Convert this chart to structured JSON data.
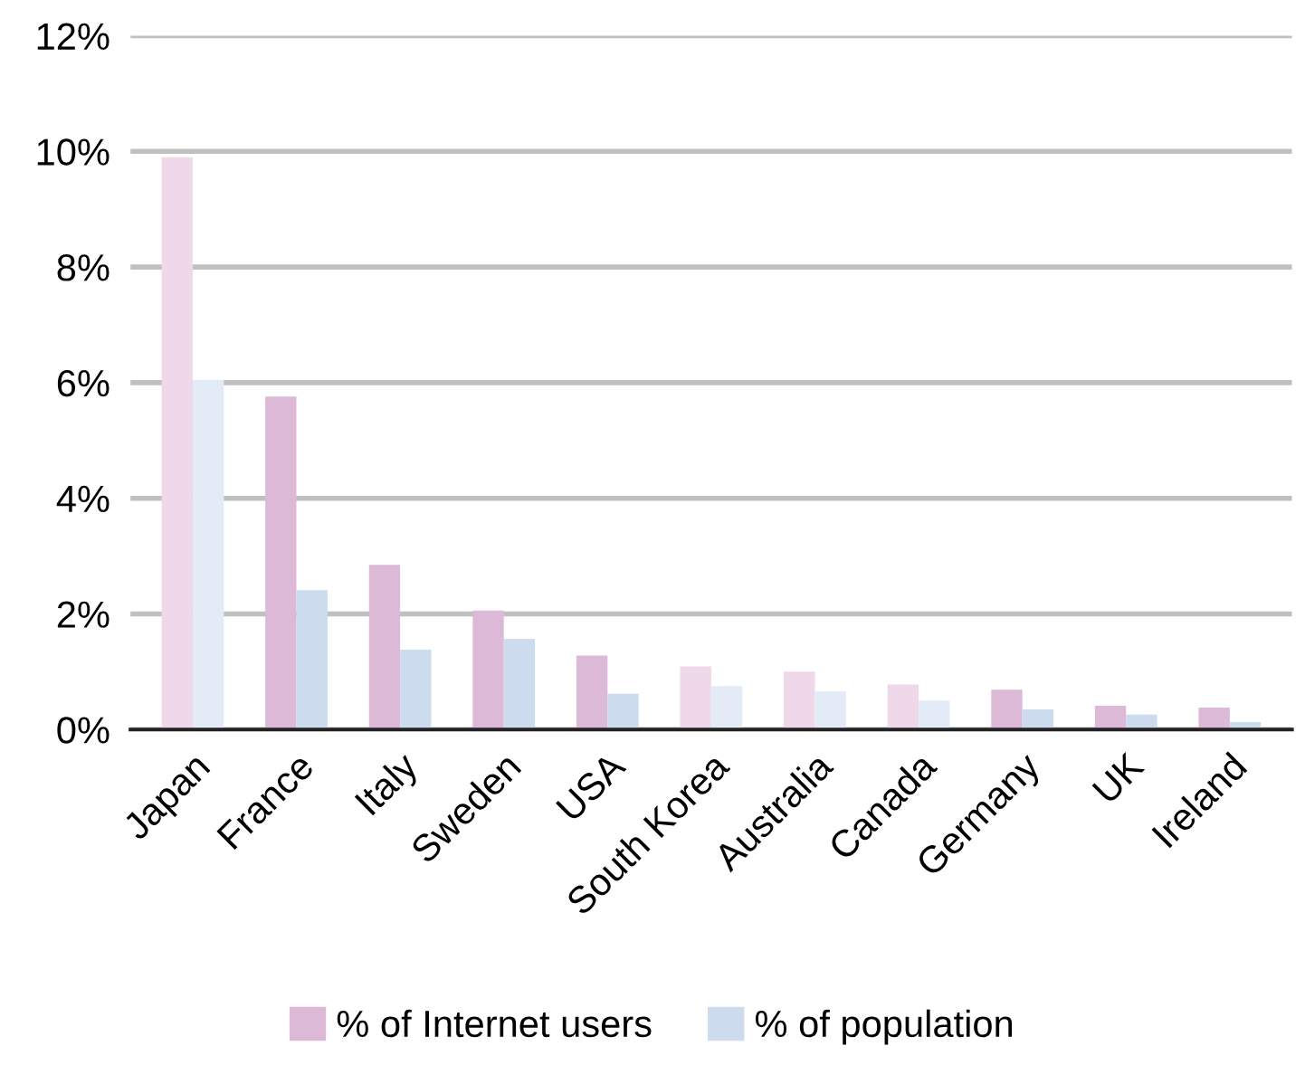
{
  "chart_data": {
    "type": "bar",
    "categories": [
      "Japan",
      "France",
      "Italy",
      "Sweden",
      "USA",
      "South Korea",
      "Australia",
      "Canada",
      "Germany",
      "UK",
      "Ireland"
    ],
    "series": [
      {
        "name": "% of Internet users",
        "color": "#dcb9d6",
        "colors": [
          "#eed8e9",
          "#dcb9d6",
          "#dcb9d6",
          "#dcb9d6",
          "#dcb9d6",
          "#eed8e9",
          "#eed8e9",
          "#eed8e9",
          "#dcb9d6",
          "#dcb9d6",
          "#dcb9d6"
        ],
        "values": [
          9.9,
          5.76,
          2.85,
          2.06,
          1.28,
          1.09,
          1.0,
          0.78,
          0.69,
          0.41,
          0.38
        ]
      },
      {
        "name": "% of population",
        "color": "#ccdcee",
        "colors": [
          "#e3ebf6",
          "#ccdcee",
          "#ccdcee",
          "#ccdcee",
          "#ccdcee",
          "#e3ebf6",
          "#e3ebf6",
          "#e3ebf6",
          "#ccdcee",
          "#ccdcee",
          "#ccdcee"
        ],
        "values": [
          6.05,
          2.41,
          1.38,
          1.57,
          0.62,
          0.75,
          0.66,
          0.5,
          0.35,
          0.26,
          0.13
        ]
      }
    ],
    "ylim": [
      0,
      12
    ],
    "yticks": [
      {
        "value": 0,
        "label": "0%"
      },
      {
        "value": 2,
        "label": "2%"
      },
      {
        "value": 4,
        "label": "4%"
      },
      {
        "value": 6,
        "label": "6%"
      },
      {
        "value": 8,
        "label": "8%"
      },
      {
        "value": 10,
        "label": "10%"
      },
      {
        "value": 12,
        "label": "12%"
      }
    ],
    "grid": "y",
    "legend": "bottom"
  }
}
